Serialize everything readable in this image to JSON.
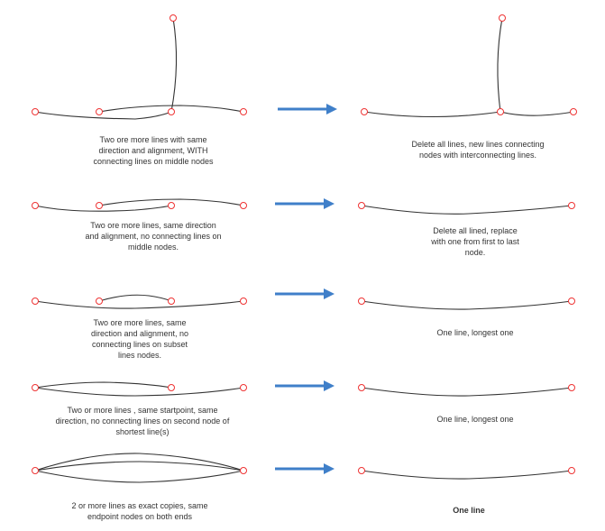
{
  "colors": {
    "node": "#e33333",
    "line": "#333333",
    "arrow": "#3f7fc9"
  },
  "rows": [
    {
      "before": [
        "Two ore more lines with same",
        "direction and alignment, WITH",
        "connecting lines on middle nodes"
      ],
      "after": [
        "Delete all lines, new lines connecting",
        "nodes with interconnecting lines."
      ]
    },
    {
      "before": [
        "Two ore more lines, same direction",
        "and alignment, no connecting lines on",
        "middle nodes."
      ],
      "after": [
        "Delete all lined, replace",
        "with one from first to last",
        "node."
      ]
    },
    {
      "before": [
        "Two ore more lines, same",
        "direction and alignment, no",
        "connecting lines on subset",
        "lines nodes."
      ],
      "after": [
        "One line, longest one"
      ]
    },
    {
      "before": [
        "Two or more lines , same startpoint, same",
        "direction, no connecting lines on second node of",
        "shortest line(s)"
      ],
      "after": [
        "One line, longest one"
      ]
    },
    {
      "before": [
        "2 or more lines as exact copies, same",
        "endpoint nodes on both ends"
      ],
      "after": [
        "One line"
      ]
    }
  ]
}
